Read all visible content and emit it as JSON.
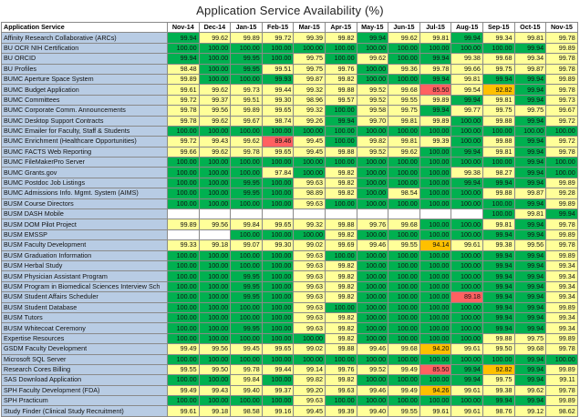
{
  "title": "Application Service Availability (%)",
  "table": {
    "service_header": "Application Service",
    "months": [
      "Nov-14",
      "Dec-14",
      "Jan-15",
      "Feb-15",
      "Mar-15",
      "Apr-15",
      "May-15",
      "Jun-15",
      "Jul-15",
      "Aug-15",
      "Sep-15",
      "Oct-15",
      "Nov-15"
    ],
    "status_colors": {
      "green": "#00b050",
      "yellow": "#ffff99",
      "orange": "#ffc000",
      "red": "#ff6161",
      "service_label": "#b8cce4"
    },
    "rows": [
      {
        "name": "Affinity Research Collaborative (ARCs)",
        "values": [
          "99.94",
          "99.62",
          "99.89",
          "99.72",
          "99.39",
          "99.82",
          "99.94",
          "99.62",
          "99.81",
          "99.94",
          "99.34",
          "99.81",
          "99.78"
        ]
      },
      {
        "name": "BU OCR NIH Certification",
        "values": [
          "100.00",
          "100.00",
          "100.00",
          "100.00",
          "100.00",
          "100.00",
          "100.00",
          "100.00",
          "100.00",
          "100.00",
          "100.00",
          "99.94",
          "99.89"
        ]
      },
      {
        "name": "BU ORCID",
        "values": [
          "99.94",
          "100.00",
          "99.95",
          "100.00",
          "99.75",
          "100.00",
          "99.62",
          "100.00",
          "99.94",
          "99.38",
          "99.68",
          "99.34",
          "99.78"
        ]
      },
      {
        "name": "BU Profiles",
        "values": [
          "98.48",
          "100.00",
          "99.95",
          "99.51",
          "99.75",
          "99.76",
          "100.00",
          "99.36",
          "99.78",
          "99.66",
          "99.75",
          "99.87",
          "99.78"
        ]
      },
      {
        "name": "BUMC Aperture Space System",
        "values": [
          "99.89",
          "100.00",
          "100.00",
          "99.93",
          "99.87",
          "99.82",
          "100.00",
          "100.00",
          "99.94",
          "99.81",
          "99.94",
          "99.94",
          "99.89"
        ]
      },
      {
        "name": "BUMC Budget Application",
        "values": [
          "99.61",
          "99.62",
          "99.73",
          "99.44",
          "99.32",
          "99.88",
          "99.52",
          "99.68",
          "85.50",
          "99.54",
          "92.82",
          "99.94",
          "99.78"
        ]
      },
      {
        "name": "BUMC Committees",
        "values": [
          "99.72",
          "99.37",
          "99.51",
          "99.30",
          "98.96",
          "99.57",
          "99.52",
          "99.55",
          "99.89",
          "99.94",
          "99.81",
          "99.94",
          "99.73"
        ]
      },
      {
        "name": "BUMC Corporate Comm. Announcements",
        "values": [
          "99.78",
          "99.56",
          "99.89",
          "99.65",
          "99.32",
          "100.00",
          "99.58",
          "99.75",
          "99.94",
          "99.77",
          "99.75",
          "99.75",
          "99.67"
        ]
      },
      {
        "name": "BUMC Desktop Support Contracts",
        "values": [
          "99.78",
          "99.62",
          "99.67",
          "98.74",
          "99.26",
          "99.94",
          "99.70",
          "99.81",
          "99.89",
          "100.00",
          "99.88",
          "99.94",
          "99.72"
        ]
      },
      {
        "name": "BUMC Emailer for Faculty, Staff & Students",
        "values": [
          "100.00",
          "100.00",
          "100.00",
          "100.00",
          "100.00",
          "100.00",
          "100.00",
          "100.00",
          "100.00",
          "100.00",
          "100.00",
          "100.00",
          "100.00"
        ]
      },
      {
        "name": "BUMC Enrichment (Healthcare Opportunities)",
        "values": [
          "99.72",
          "99.43",
          "99.62",
          "89.46",
          "99.45",
          "100.00",
          "99.82",
          "99.81",
          "99.39",
          "100.00",
          "99.88",
          "99.94",
          "99.72"
        ]
      },
      {
        "name": "BUMC FACTS Web Reporting",
        "values": [
          "99.66",
          "99.62",
          "99.78",
          "99.65",
          "99.45",
          "99.88",
          "99.52",
          "99.62",
          "100.00",
          "99.94",
          "99.81",
          "99.94",
          "99.78"
        ]
      },
      {
        "name": "BUMC FileMakerPro Server",
        "values": [
          "100.00",
          "100.00",
          "100.00",
          "100.00",
          "100.00",
          "100.00",
          "100.00",
          "100.00",
          "100.00",
          "100.00",
          "100.00",
          "99.94",
          "100.00"
        ]
      },
      {
        "name": "BUMC Grants.gov",
        "values": [
          "100.00",
          "100.00",
          "100.00",
          "97.84",
          "100.00",
          "99.82",
          "100.00",
          "100.00",
          "100.00",
          "99.38",
          "98.27",
          "99.94",
          "100.00"
        ]
      },
      {
        "name": "BUMC Postdoc Job Listings",
        "values": [
          "100.00",
          "100.00",
          "99.95",
          "100.00",
          "99.63",
          "99.82",
          "100.00",
          "100.00",
          "100.00",
          "99.94",
          "99.94",
          "99.94",
          "99.89"
        ]
      },
      {
        "name": "BUMC Admissions Info. Mgmt. System (AIMS)",
        "values": [
          "100.00",
          "100.00",
          "99.95",
          "100.00",
          "98.89",
          "99.82",
          "100.00",
          "98.54",
          "100.00",
          "100.00",
          "99.88",
          "99.87",
          "99.28"
        ]
      },
      {
        "name": "BUSM Course Directors",
        "values": [
          "100.00",
          "100.00",
          "100.00",
          "100.00",
          "99.63",
          "100.00",
          "100.00",
          "100.00",
          "100.00",
          "100.00",
          "100.00",
          "99.94",
          "99.89"
        ]
      },
      {
        "name": "BUSM DASH Mobile",
        "values": [
          "",
          "",
          "",
          "",
          "",
          "",
          "",
          "",
          "",
          "",
          "100.00",
          "99.81",
          "99.94"
        ]
      },
      {
        "name": "BUSM DOM Pilot Project",
        "values": [
          "99.89",
          "99.56",
          "99.84",
          "99.65",
          "99.32",
          "99.88",
          "99.76",
          "99.68",
          "100.00",
          "100.00",
          "99.81",
          "99.94",
          "99.78"
        ]
      },
      {
        "name": "BUSM EMSSP",
        "values": [
          "",
          "",
          "100.00",
          "100.00",
          "100.00",
          "99.82",
          "100.00",
          "100.00",
          "100.00",
          "100.00",
          "99.94",
          "99.94",
          "99.89"
        ]
      },
      {
        "name": "BUSM Faculty Development",
        "values": [
          "99.33",
          "99.18",
          "99.07",
          "99.30",
          "99.02",
          "99.69",
          "99.46",
          "99.55",
          "94.14",
          "99.61",
          "99.38",
          "99.56",
          "99.78"
        ]
      },
      {
        "name": "BUSM Graduation Information",
        "values": [
          "100.00",
          "100.00",
          "100.00",
          "100.00",
          "99.63",
          "100.00",
          "100.00",
          "100.00",
          "100.00",
          "100.00",
          "99.94",
          "99.94",
          "99.89"
        ]
      },
      {
        "name": "BUSM Herbal Study",
        "values": [
          "100.00",
          "100.00",
          "100.00",
          "100.00",
          "99.63",
          "99.82",
          "100.00",
          "100.00",
          "100.00",
          "100.00",
          "99.94",
          "99.94",
          "99.34"
        ]
      },
      {
        "name": "BUSM Physician Assistant Program",
        "values": [
          "100.00",
          "100.00",
          "99.95",
          "100.00",
          "99.63",
          "99.82",
          "100.00",
          "100.00",
          "100.00",
          "100.00",
          "99.94",
          "99.94",
          "99.34"
        ]
      },
      {
        "name": "BUSM Program in Biomedical Sciences Interview Sch",
        "values": [
          "100.00",
          "100.00",
          "99.95",
          "100.00",
          "99.63",
          "99.82",
          "100.00",
          "100.00",
          "100.00",
          "100.00",
          "99.94",
          "99.94",
          "99.34"
        ]
      },
      {
        "name": "BUSM Student Affairs Scheduler",
        "values": [
          "100.00",
          "100.00",
          "99.95",
          "100.00",
          "99.63",
          "99.82",
          "100.00",
          "100.00",
          "100.00",
          "89.18",
          "99.94",
          "99.94",
          "99.34"
        ]
      },
      {
        "name": "BUSM Student Database",
        "values": [
          "100.00",
          "100.00",
          "100.00",
          "100.00",
          "99.63",
          "100.00",
          "100.00",
          "100.00",
          "100.00",
          "100.00",
          "99.94",
          "99.94",
          "99.89"
        ]
      },
      {
        "name": "BUSM Tutors",
        "values": [
          "100.00",
          "100.00",
          "100.00",
          "100.00",
          "99.63",
          "99.82",
          "100.00",
          "100.00",
          "100.00",
          "100.00",
          "99.94",
          "99.94",
          "99.34"
        ]
      },
      {
        "name": "BUSM Whitecoat Ceremony",
        "values": [
          "100.00",
          "100.00",
          "99.95",
          "100.00",
          "99.63",
          "99.82",
          "100.00",
          "100.00",
          "100.00",
          "100.00",
          "99.94",
          "99.94",
          "99.34"
        ]
      },
      {
        "name": "Expertise Resources",
        "values": [
          "100.00",
          "100.00",
          "100.00",
          "100.00",
          "100.00",
          "99.82",
          "100.00",
          "100.00",
          "100.00",
          "100.00",
          "99.88",
          "99.75",
          "99.89"
        ]
      },
      {
        "name": "GSDM Faculty Development",
        "values": [
          "99.49",
          "99.56",
          "99.45",
          "99.65",
          "99.02",
          "99.88",
          "99.46",
          "99.68",
          "94.20",
          "99.61",
          "99.50",
          "99.68",
          "99.78"
        ]
      },
      {
        "name": "Microsoft SQL Server",
        "values": [
          "100.00",
          "100.00",
          "100.00",
          "100.00",
          "100.00",
          "100.00",
          "100.00",
          "100.00",
          "100.00",
          "100.00",
          "100.00",
          "99.94",
          "100.00"
        ]
      },
      {
        "name": "Research Cores Billing",
        "values": [
          "99.55",
          "99.50",
          "99.78",
          "99.44",
          "99.14",
          "99.76",
          "99.52",
          "99.49",
          "85.50",
          "99.94",
          "92.82",
          "99.94",
          "99.89"
        ]
      },
      {
        "name": "SAS Download Application",
        "values": [
          "100.00",
          "100.00",
          "99.84",
          "100.00",
          "99.82",
          "99.82",
          "100.00",
          "100.00",
          "100.00",
          "99.94",
          "99.75",
          "99.94",
          "99.11"
        ]
      },
      {
        "name": "SPH Faculty Development (FDA)",
        "values": [
          "99.49",
          "99.43",
          "99.40",
          "99.37",
          "99.20",
          "99.63",
          "99.46",
          "99.49",
          "94.26",
          "99.61",
          "99.38",
          "99.62",
          "99.78"
        ]
      },
      {
        "name": "SPH Practicum",
        "values": [
          "100.00",
          "100.00",
          "100.00",
          "100.00",
          "99.63",
          "100.00",
          "100.00",
          "100.00",
          "100.00",
          "100.00",
          "99.94",
          "99.94",
          "99.89"
        ]
      },
      {
        "name": "Study Finder (Clinical Study Recruitment)",
        "values": [
          "99.61",
          "99.18",
          "98.58",
          "99.16",
          "99.45",
          "99.39",
          "99.40",
          "99.55",
          "99.61",
          "99.61",
          "98.76",
          "99.12",
          "98.62"
        ]
      }
    ]
  }
}
